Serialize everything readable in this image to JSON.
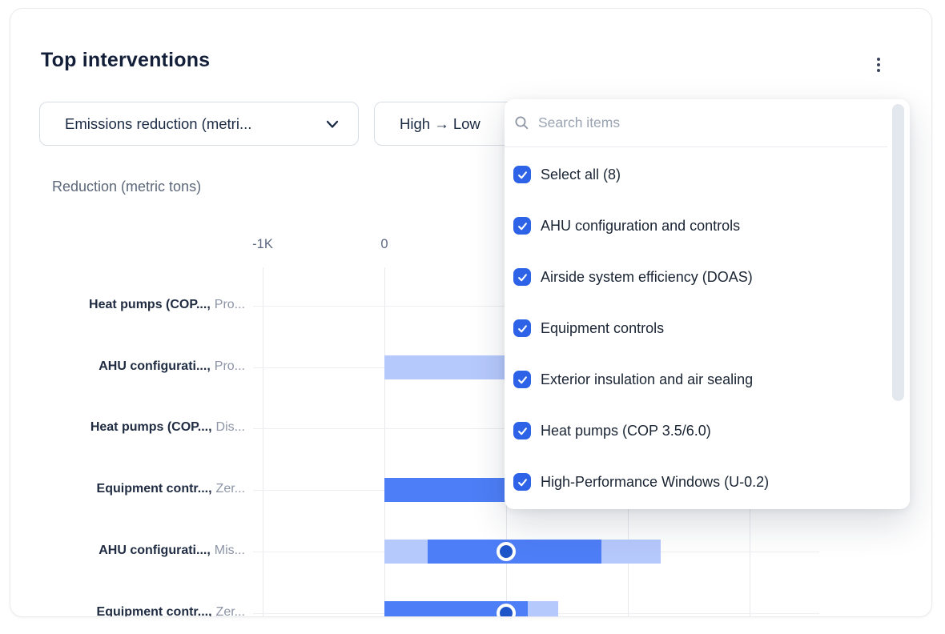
{
  "card": {
    "title": "Top interventions"
  },
  "controls": {
    "metric_dropdown": {
      "label": "Emissions reduction (metri..."
    },
    "sort_dropdown": {
      "label": "High → Low"
    }
  },
  "chart": {
    "axis_title": "Reduction (metric tons)"
  },
  "dropdown_panel": {
    "search_placeholder": "Search items",
    "items": [
      {
        "label": "Select all (8)",
        "checked": true
      },
      {
        "label": "AHU configuration and controls",
        "checked": true
      },
      {
        "label": "Airside system efficiency (DOAS)",
        "checked": true
      },
      {
        "label": "Equipment controls",
        "checked": true
      },
      {
        "label": "Exterior insulation and air sealing",
        "checked": true
      },
      {
        "label": "Heat pumps (COP 3.5/6.0)",
        "checked": true
      },
      {
        "label": "High-Performance Windows (U-0.2)",
        "checked": true
      }
    ]
  },
  "colors": {
    "accent": "#2e63e8",
    "bar_solid": "#4e7ef7",
    "bar_light": "#b6c9fc",
    "marker": "#1d54c8",
    "title": "#131f38"
  },
  "chart_data": {
    "type": "bar",
    "title": "Top interventions",
    "xlabel": "Reduction (metric tons)",
    "xlim": [
      -1000,
      3650
    ],
    "x_ticks": [
      {
        "label": "-1K",
        "value": -1000
      },
      {
        "label": "0",
        "value": 0
      }
    ],
    "grid_values": [
      -1000,
      0,
      1000,
      2000,
      3000
    ],
    "legend": "none",
    "rows": [
      {
        "label_primary": "Heat pumps (COP...,",
        "label_secondary": "Pro...",
        "segments": [],
        "marker": null
      },
      {
        "label_primary": "AHU configurati...,",
        "label_secondary": "Pro...",
        "segments": [
          {
            "from": 0,
            "to": 1530,
            "style": "light"
          }
        ],
        "marker": null
      },
      {
        "label_primary": "Heat pumps (COP...,",
        "label_secondary": "Dis...",
        "segments": [],
        "marker": null
      },
      {
        "label_primary": "Equipment contr...,",
        "label_secondary": "Zer...",
        "segments": [
          {
            "from": 0,
            "to": 1530,
            "style": "solid"
          }
        ],
        "marker": null
      },
      {
        "label_primary": "AHU configurati...,",
        "label_secondary": "Mis...",
        "segments": [
          {
            "from": 0,
            "to": 355,
            "style": "light"
          },
          {
            "from": 355,
            "to": 1780,
            "style": "solid"
          },
          {
            "from": 1780,
            "to": 2270,
            "style": "light"
          }
        ],
        "marker": 1000
      },
      {
        "label_primary": "Equipment contr...,",
        "label_secondary": "Zer...",
        "segments": [
          {
            "from": 0,
            "to": 1180,
            "style": "solid"
          },
          {
            "from": 1180,
            "to": 1430,
            "style": "light"
          }
        ],
        "marker": 1000
      }
    ]
  }
}
